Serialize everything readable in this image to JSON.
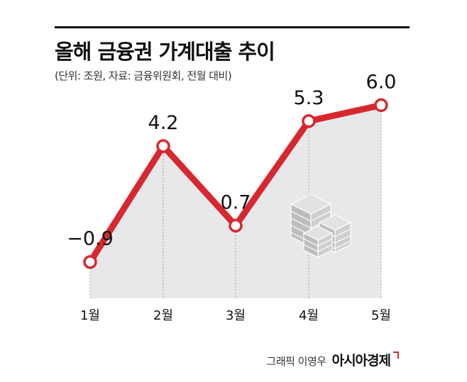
{
  "header": {
    "title": "올해 금융권 가계대출 추이",
    "subtitle": "(단위: 조원, 자료: 금융위원회, 전월 대비)"
  },
  "chart_data": {
    "type": "line",
    "categories": [
      "1월",
      "2월",
      "3월",
      "4월",
      "5월"
    ],
    "values": [
      -0.9,
      4.2,
      0.7,
      5.3,
      6.0
    ],
    "value_labels": [
      "−0.9",
      "4.2",
      "0.7",
      "5.3",
      "6.0"
    ],
    "ylim": [
      -2.5,
      6.2
    ],
    "grid": false,
    "colors": {
      "line": "#d7282f",
      "area": "#e8e8ea",
      "marker_fill": "#ffffff"
    }
  },
  "footer": {
    "credit": "그래픽 이영우",
    "brand": "아시아경제"
  }
}
